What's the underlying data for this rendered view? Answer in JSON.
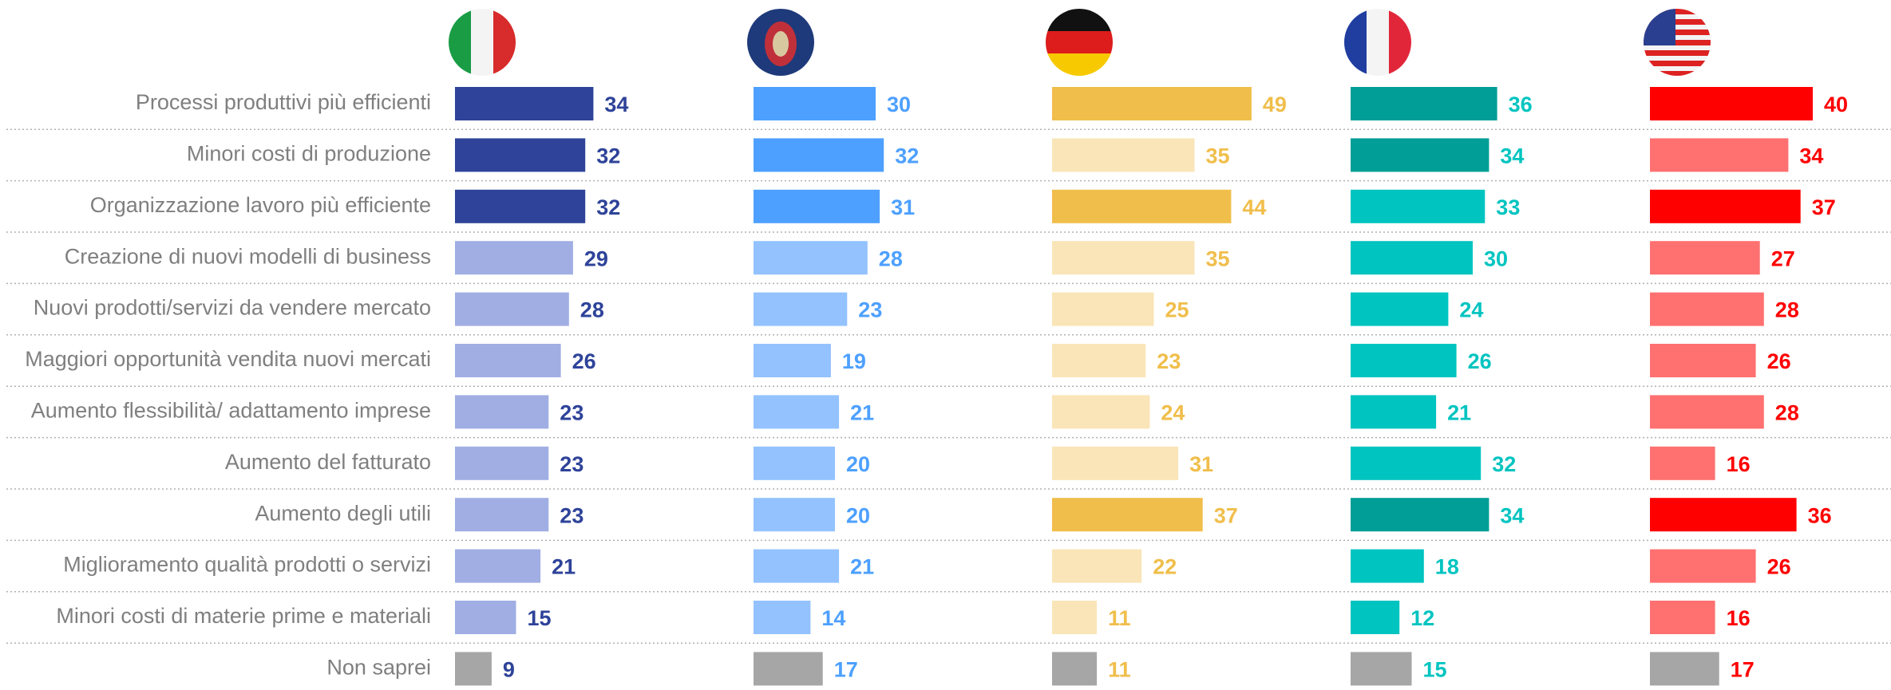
{
  "chart_data": {
    "type": "bar",
    "orientation": "horizontal",
    "categories": [
      "Processi produttivi più efficienti",
      "Minori costi di produzione",
      "Organizzazione lavoro più efficiente",
      "Creazione di nuovi modelli di business",
      "Nuovi prodotti/servizi da vendere mercato",
      "Maggiori opportunità vendita nuovi mercati",
      "Aumento flessibilità/ adattamento imprese",
      "Aumento del fatturato",
      "Aumento degli utili",
      "Miglioramento qualità prodotti o servizi",
      "Minori costi di materie prime e materiali",
      "Non saprei"
    ],
    "series": [
      {
        "label_color": "#2e4399",
        "values": [
          34,
          32,
          32,
          29,
          28,
          26,
          23,
          23,
          23,
          21,
          15,
          9
        ],
        "colors": [
          "#2e4399",
          "#2e4399",
          "#2e4399",
          "#a0aee3",
          "#a0aee3",
          "#a0aee3",
          "#a0aee3",
          "#a0aee3",
          "#a0aee3",
          "#a0aee3",
          "#a0aee3",
          "#a6a6a6"
        ]
      },
      {
        "label_color": "#4da0ff",
        "values": [
          30,
          32,
          31,
          28,
          23,
          19,
          21,
          20,
          20,
          21,
          14,
          17
        ],
        "colors": [
          "#4da0ff",
          "#4da0ff",
          "#4da0ff",
          "#93c2ff",
          "#93c2ff",
          "#93c2ff",
          "#93c2ff",
          "#93c2ff",
          "#93c2ff",
          "#93c2ff",
          "#93c2ff",
          "#a6a6a6"
        ]
      },
      {
        "label_color": "#f0be4b",
        "values": [
          49,
          35,
          44,
          35,
          25,
          23,
          24,
          31,
          37,
          22,
          11,
          11
        ],
        "colors": [
          "#f0be4b",
          "#fae5b8",
          "#f0be4b",
          "#fae5b8",
          "#fae5b8",
          "#fae5b8",
          "#fae5b8",
          "#fae5b8",
          "#f0be4b",
          "#fae5b8",
          "#fae5b8",
          "#a6a6a6"
        ]
      },
      {
        "label_color": "#00c4c0",
        "values": [
          36,
          34,
          33,
          30,
          24,
          26,
          21,
          32,
          34,
          18,
          12,
          15
        ],
        "colors": [
          "#009e96",
          "#009e96",
          "#00c4c0",
          "#00c4c0",
          "#00c4c0",
          "#00c4c0",
          "#00c4c0",
          "#00c4c0",
          "#009e96",
          "#00c4c0",
          "#00c4c0",
          "#a6a6a6"
        ]
      },
      {
        "label_color": "#ff0000",
        "values": [
          40,
          34,
          37,
          27,
          28,
          26,
          28,
          16,
          36,
          26,
          16,
          17
        ],
        "colors": [
          "#ff0000",
          "#ff7070",
          "#ff0000",
          "#ff7070",
          "#ff7070",
          "#ff7070",
          "#ff7070",
          "#ff7070",
          "#ff0000",
          "#ff7070",
          "#ff7070",
          "#a6a6a6"
        ]
      }
    ]
  }
}
